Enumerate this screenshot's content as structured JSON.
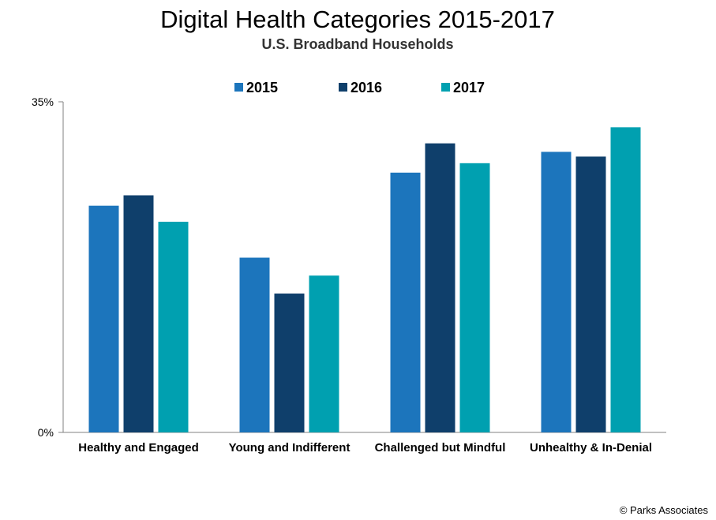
{
  "chart_data": {
    "type": "bar",
    "title": "Digital Health Categories 2015-2017",
    "subtitle": "U.S. Broadband Households",
    "categories": [
      "Healthy and Engaged",
      "Young and Indifferent",
      "Challenged but Mindful",
      "Unhealthy & In-Denial"
    ],
    "series": [
      {
        "name": "2015",
        "values": [
          24,
          18.5,
          27.5,
          29.7
        ],
        "color": "#1c75bc"
      },
      {
        "name": "2016",
        "values": [
          25.1,
          14.7,
          30.6,
          29.2
        ],
        "color": "#0f3f6b"
      },
      {
        "name": "2017",
        "values": [
          22.3,
          16.6,
          28.5,
          32.3
        ],
        "color": "#00a0b0"
      }
    ],
    "ylim": [
      0,
      35
    ],
    "y_ticks": [
      "0%",
      "35%"
    ],
    "legend_position": "top-center",
    "grid": false
  },
  "credit": "© Parks Associates"
}
